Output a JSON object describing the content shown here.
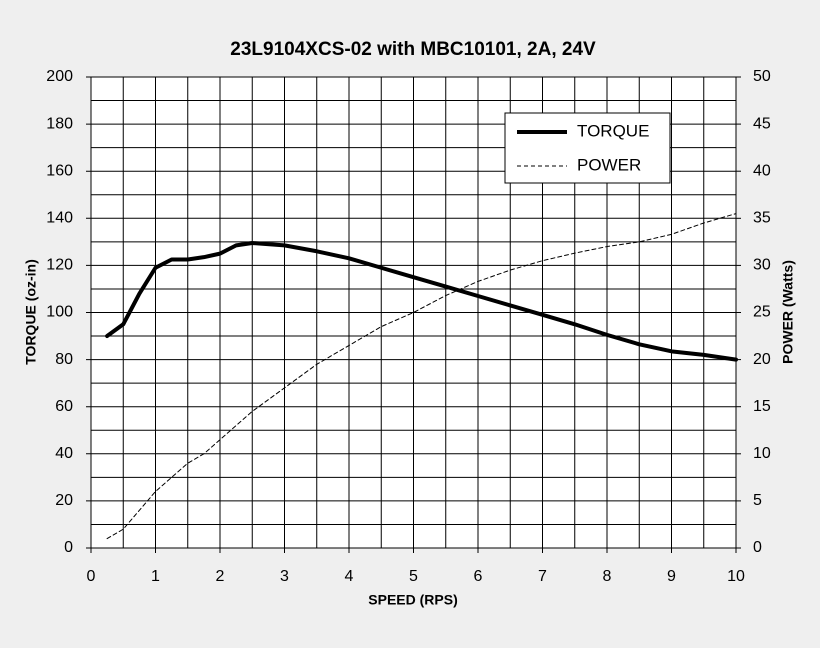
{
  "chart_data": {
    "type": "line",
    "title": "23L9104XCS-02 with MBC10101, 2A, 24V",
    "xlabel": "SPEED (RPS)",
    "ylabel": "TORQUE (oz-in)",
    "y2label": "POWER (Watts)",
    "x": [
      0.25,
      0.5,
      0.75,
      1,
      1.25,
      1.5,
      1.75,
      2,
      2.25,
      2.5,
      3,
      3.5,
      4,
      4.5,
      5,
      5.5,
      6,
      6.5,
      7,
      7.5,
      8,
      8.5,
      9,
      9.5,
      10
    ],
    "series": [
      {
        "name": "TORQUE",
        "color": "#000000",
        "width": 4,
        "style": "solid",
        "values": [
          90,
          95,
          108,
          119,
          122.5,
          122.5,
          123.5,
          125,
          128.5,
          129.5,
          128.5,
          126,
          123,
          119,
          115,
          111,
          107,
          103,
          99,
          95,
          90.5,
          86.5,
          83.5,
          82,
          80
        ]
      },
      {
        "name": "POWER",
        "color": "#000000",
        "width": 1,
        "style": "dashed",
        "axis": "y2",
        "values": [
          1,
          2,
          4,
          6,
          7.5,
          9,
          10,
          11.5,
          13,
          14.5,
          17,
          19.5,
          21.5,
          23.5,
          25,
          26.8,
          28.3,
          29.5,
          30.5,
          31.3,
          32,
          32.5,
          33.3,
          34.5,
          35.5
        ]
      }
    ],
    "xlim": [
      0,
      10
    ],
    "xticks": [
      0,
      1,
      2,
      3,
      4,
      5,
      6,
      7,
      8,
      9,
      10
    ],
    "ylim": [
      0,
      200
    ],
    "yticks": [
      0,
      20,
      40,
      60,
      80,
      100,
      120,
      140,
      160,
      180,
      200
    ],
    "y2lim": [
      0,
      50
    ],
    "y2ticks": [
      0,
      5,
      10,
      15,
      20,
      25,
      30,
      35,
      40,
      45,
      50
    ],
    "x_minor_grid": [
      0.5,
      1.5,
      2.5,
      3.5,
      4.5,
      5.5,
      6.5,
      7.5,
      8.5,
      9.5
    ],
    "y_minor_grid": [
      10,
      30,
      50,
      70,
      90,
      110,
      130,
      150,
      170,
      190
    ],
    "grid": true,
    "legend": "upper right"
  }
}
